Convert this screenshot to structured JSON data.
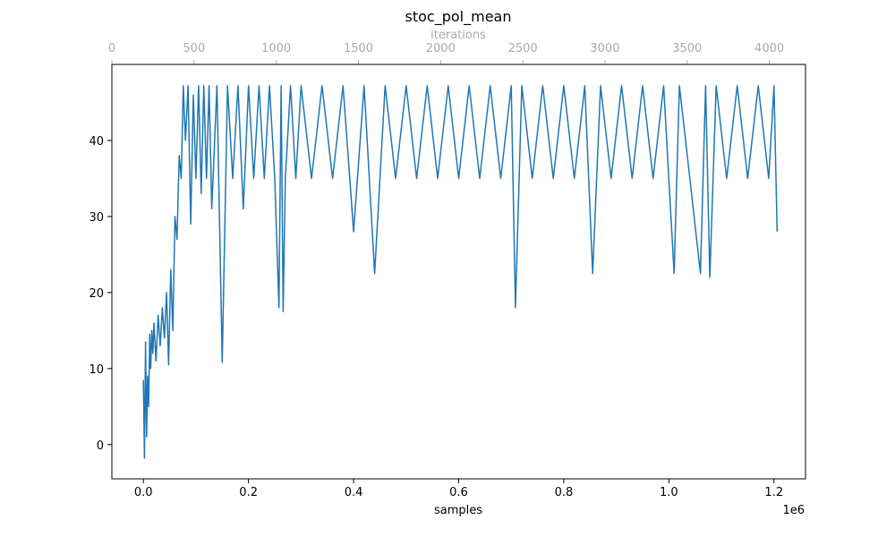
{
  "chart_data": {
    "type": "line",
    "title": "stoc_pol_mean",
    "xlabel": "samples",
    "x_offset_label": "1e6",
    "x2label": "iterations",
    "x_scale_factor": 1000000,
    "xlim": [
      -0.06,
      1.26
    ],
    "x_ticks": [
      0,
      0.2,
      0.4,
      0.6,
      0.8,
      1.0,
      1.2
    ],
    "x_tick_labels": [
      "0.0",
      "0.2",
      "0.4",
      "0.6",
      "0.8",
      "1.0",
      "1.2"
    ],
    "x2lim": [
      0,
      4220
    ],
    "x2_ticks": [
      0,
      500,
      1000,
      1500,
      2000,
      2500,
      3000,
      3500,
      4000
    ],
    "x2_tick_labels": [
      "0",
      "500",
      "1000",
      "1500",
      "2000",
      "2500",
      "3000",
      "3500",
      "4000"
    ],
    "ylim": [
      -4.5,
      50
    ],
    "y_ticks": [
      0,
      10,
      20,
      30,
      40
    ],
    "y_tick_labels": [
      "0",
      "10",
      "20",
      "30",
      "40"
    ],
    "grid": false,
    "colors": {
      "line": "#1f77b4",
      "axis": "#000000",
      "secondary_axis": "#aaaaaa",
      "background": "#ffffff"
    },
    "series": [
      {
        "name": "",
        "x": [
          0.0,
          0.002,
          0.004,
          0.006,
          0.008,
          0.01,
          0.012,
          0.014,
          0.016,
          0.018,
          0.02,
          0.024,
          0.028,
          0.032,
          0.036,
          0.04,
          0.044,
          0.048,
          0.052,
          0.056,
          0.06,
          0.064,
          0.068,
          0.072,
          0.076,
          0.08,
          0.085,
          0.09,
          0.095,
          0.1,
          0.105,
          0.11,
          0.115,
          0.12,
          0.125,
          0.13,
          0.14,
          0.15,
          0.16,
          0.17,
          0.18,
          0.19,
          0.2,
          0.21,
          0.22,
          0.23,
          0.24,
          0.25,
          0.258,
          0.262,
          0.266,
          0.27,
          0.28,
          0.29,
          0.3,
          0.32,
          0.34,
          0.36,
          0.38,
          0.4,
          0.42,
          0.44,
          0.46,
          0.48,
          0.5,
          0.52,
          0.54,
          0.56,
          0.58,
          0.6,
          0.62,
          0.64,
          0.66,
          0.68,
          0.7,
          0.708,
          0.72,
          0.74,
          0.76,
          0.78,
          0.8,
          0.82,
          0.84,
          0.855,
          0.87,
          0.89,
          0.91,
          0.93,
          0.95,
          0.97,
          0.99,
          1.01,
          1.02,
          1.04,
          1.06,
          1.07,
          1.078,
          1.09,
          1.11,
          1.13,
          1.15,
          1.17,
          1.19,
          1.2,
          1.206
        ],
        "y": [
          8.5,
          -1.8,
          13.5,
          1.0,
          9.0,
          5.0,
          14.5,
          10.0,
          15.0,
          12.0,
          16.0,
          11.0,
          17.0,
          13.0,
          18.0,
          14.0,
          20.0,
          10.5,
          23.0,
          15.0,
          30.0,
          27.0,
          38.0,
          35.0,
          47.2,
          40.0,
          47.2,
          29.0,
          46.0,
          35.0,
          47.2,
          33.0,
          47.2,
          35.0,
          47.2,
          31.0,
          47.2,
          10.8,
          47.2,
          35.0,
          47.2,
          31.0,
          47.2,
          35.0,
          47.2,
          35.0,
          47.2,
          35.0,
          18.0,
          47.2,
          17.5,
          35.0,
          47.2,
          35.0,
          47.2,
          35.0,
          47.2,
          35.0,
          47.2,
          28.0,
          47.2,
          22.5,
          47.2,
          35.0,
          47.2,
          35.0,
          47.2,
          35.0,
          47.2,
          35.0,
          47.2,
          35.0,
          47.2,
          35.0,
          47.2,
          18.0,
          47.2,
          35.0,
          47.2,
          35.0,
          47.2,
          35.0,
          47.2,
          22.5,
          47.2,
          35.0,
          47.2,
          35.0,
          47.2,
          35.0,
          47.2,
          22.5,
          47.2,
          35.0,
          22.5,
          47.2,
          22.0,
          47.2,
          35.0,
          47.2,
          35.0,
          47.2,
          35.0,
          47.2,
          28.0
        ]
      }
    ]
  }
}
